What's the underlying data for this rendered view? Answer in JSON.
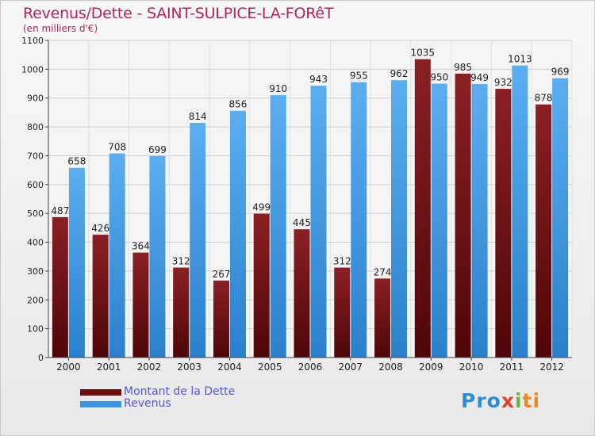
{
  "title": "Revenus/Dette - SAINT-SULPICE-LA-FORêT",
  "subtitle": "(en milliers d'€)",
  "colors": {
    "debt": "#6e0d10",
    "revenue": "#3d97e0",
    "title": "#b0245e",
    "legend_text": "#5555dd"
  },
  "chart_data": {
    "type": "bar",
    "title": "Revenus/Dette - SAINT-SULPICE-LA-FORêT",
    "ylabel": "(en milliers d'€)",
    "categories": [
      "2000",
      "2001",
      "2002",
      "2003",
      "2004",
      "2005",
      "2006",
      "2007",
      "2008",
      "2009",
      "2010",
      "2011",
      "2012"
    ],
    "series": [
      {
        "name": "Montant de la Dette",
        "values": [
          487,
          426,
          364,
          312,
          267,
          499,
          445,
          312,
          274,
          1035,
          985,
          932,
          878
        ]
      },
      {
        "name": "Revenus",
        "values": [
          658,
          708,
          699,
          814,
          856,
          910,
          943,
          955,
          962,
          950,
          949,
          1013,
          969
        ]
      }
    ],
    "ylim": [
      0,
      1100
    ],
    "yticks": [
      0,
      100,
      200,
      300,
      400,
      500,
      600,
      700,
      800,
      900,
      1000,
      1100
    ],
    "grid": true,
    "legend": "bottom-left"
  },
  "legend": {
    "debt_label": "Montant de la Dette",
    "revenue_label": "Revenus"
  },
  "logo": {
    "p1": "Pro",
    "p2": "x",
    "p3": "i",
    "p4": "ti"
  }
}
